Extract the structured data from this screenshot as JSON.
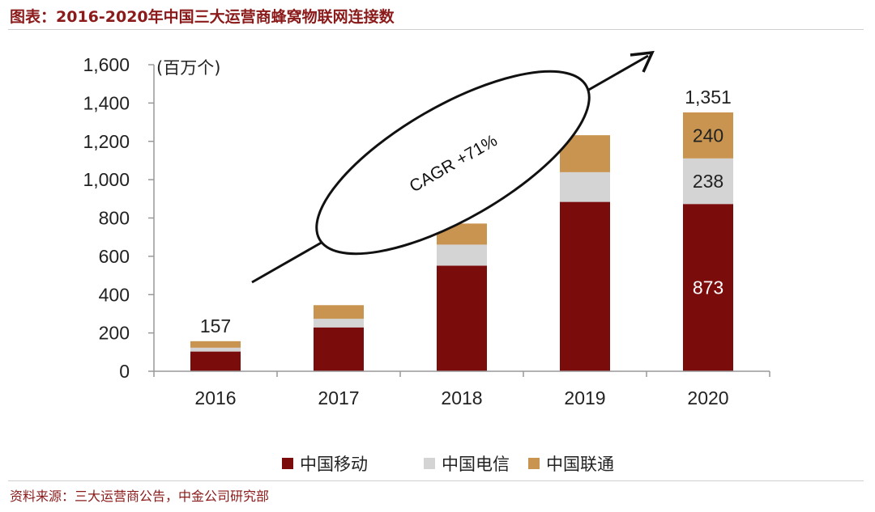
{
  "title": "图表：2016-2020年中国三大运营商蜂窝物联网连接数",
  "source": "资料来源：三大运营商公告，中金公司研究部",
  "colors": {
    "title": "#8b1a1a",
    "mobile": "#7b0c0c",
    "telecom": "#d4d4d4",
    "unicom": "#c8944f"
  },
  "chart_data": {
    "type": "bar",
    "stacked": true,
    "unit_label": "(百万个)",
    "categories": [
      "2016",
      "2017",
      "2018",
      "2019",
      "2020"
    ],
    "series": [
      {
        "name": "中国移动",
        "values": [
          103,
          229,
          551,
          884,
          873
        ]
      },
      {
        "name": "中国电信",
        "values": [
          20,
          45,
          110,
          155,
          238
        ]
      },
      {
        "name": "中国联通",
        "values": [
          34,
          71,
          110,
          193,
          240
        ]
      }
    ],
    "ylim": [
      0,
      1600
    ],
    "yticks": [
      0,
      200,
      400,
      600,
      800,
      1000,
      1200,
      1400,
      1600
    ],
    "ytick_labels": [
      "0",
      "200",
      "400",
      "600",
      "800",
      "1,000",
      "1,200",
      "1,400",
      "1,600"
    ],
    "total_labels": [
      {
        "category": "2016",
        "text": "157"
      },
      {
        "category": "2020",
        "text": "1,351"
      }
    ],
    "segment_labels": [
      {
        "category": "2020",
        "series": 0,
        "text": "873"
      },
      {
        "category": "2020",
        "series": 1,
        "text": "238"
      },
      {
        "category": "2020",
        "series": 2,
        "text": "240"
      }
    ],
    "annotation": "CAGR +71%",
    "legend_position": "bottom",
    "grid": false
  }
}
